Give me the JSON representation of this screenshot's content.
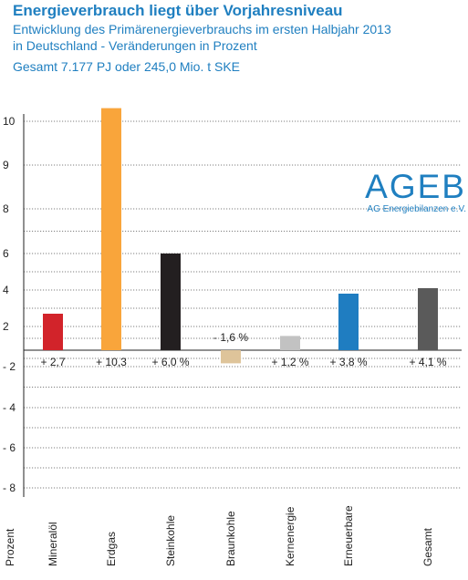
{
  "header": {
    "title": "Energieverbrauch liegt über Vorjahresniveau",
    "subtitle_line1": "Entwicklung des Primärenergieverbrauchs im ersten Halbjahr 2013",
    "subtitle_line2": "in Deutschland - Veränderungen in Prozent",
    "total": "Gesamt 7.177 PJ oder 245,0 Mio. t SKE"
  },
  "logo": {
    "name": "AGEB",
    "subtitle": "AG Energiebilanzen e.V."
  },
  "chart_data": {
    "type": "bar",
    "ylabel": "Prozent",
    "categories": [
      "Mineralöl",
      "Erdgas",
      "Steinkohle",
      "Braunkohle",
      "Kernenergie",
      "Erneuerbare",
      "Gesamt"
    ],
    "values": [
      2.7,
      10.3,
      6.0,
      -1.6,
      1.2,
      3.8,
      4.1
    ],
    "value_labels": [
      "+ 2,7",
      "+ 10,3",
      "+ 6,0 %",
      "- 1,6 %",
      "+ 1,2 %",
      "+ 3,8 %",
      "+ 4,1 %"
    ],
    "colors": [
      "#d2232a",
      "#f9a53b",
      "#231f20",
      "#dec49a",
      "#c2c2c2",
      "#1f7dc1",
      "#5a5a5a"
    ],
    "yticks": [
      10,
      9,
      8,
      6,
      4,
      2,
      -2,
      -4,
      -6,
      -8
    ],
    "ylim": [
      -8.5,
      10.5
    ],
    "grid": true,
    "gridlines": [
      10,
      9,
      8,
      7,
      6,
      5,
      4,
      3,
      2,
      1,
      -1,
      -2,
      -3,
      -4,
      -5,
      -6,
      -7,
      -8
    ]
  }
}
